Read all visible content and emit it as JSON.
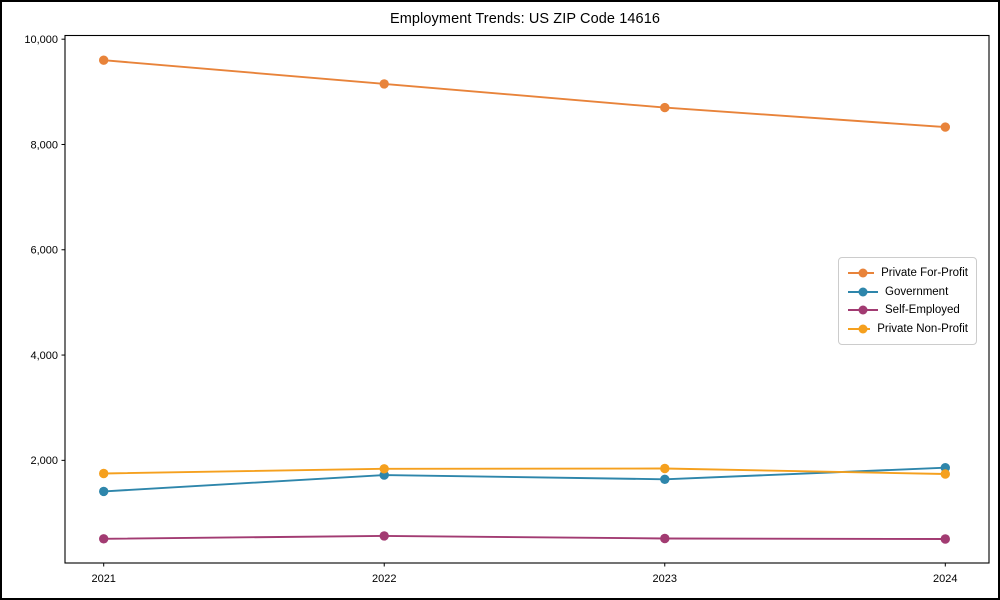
{
  "chart_data": {
    "type": "line",
    "title": "Employment Trends: US ZIP Code 14616",
    "x": [
      2021,
      2022,
      2023,
      2024
    ],
    "x_tick_labels": [
      "2021",
      "2022",
      "2023",
      "2024"
    ],
    "yticks": [
      2000,
      4000,
      6000,
      8000,
      10000
    ],
    "ytick_labels": [
      "2,000",
      "4,000",
      "6,000",
      "8,000",
      "10,000"
    ],
    "ylim": [
      50,
      10070
    ],
    "xlabel": "",
    "ylabel": "",
    "grid": false,
    "marker": "circle",
    "legend_position": "center-right",
    "series": [
      {
        "name": "Private For-Profit",
        "color": "#E8833A",
        "values": [
          9600,
          9150,
          8700,
          8330
        ]
      },
      {
        "name": "Government",
        "color": "#2E86AB",
        "values": [
          1410,
          1720,
          1640,
          1860
        ]
      },
      {
        "name": "Self-Employed",
        "color": "#A23B72",
        "values": [
          510,
          565,
          515,
          505
        ]
      },
      {
        "name": "Private Non-Profit",
        "color": "#F5A01E",
        "values": [
          1750,
          1840,
          1845,
          1740
        ]
      }
    ]
  }
}
